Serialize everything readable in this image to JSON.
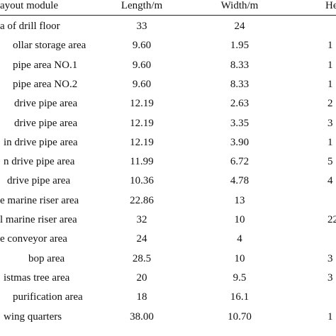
{
  "table": {
    "header": [
      "ayout module",
      "Length/m",
      "Width/m",
      "Hei"
    ],
    "rows": [
      [
        "a of drill floor",
        "33",
        "24",
        null
      ],
      [
        "ollar storage area",
        "9.60",
        "1.95",
        "1"
      ],
      [
        "pipe area NO.1",
        "9.60",
        "8.33",
        "1"
      ],
      [
        "pipe area NO.2",
        "9.60",
        "8.33",
        "1"
      ],
      [
        "drive pipe area",
        "12.19",
        "2.63",
        "2"
      ],
      [
        "drive pipe area",
        "12.19",
        "3.35",
        "3"
      ],
      [
        "in drive pipe area",
        "12.19",
        "3.90",
        "1"
      ],
      [
        "n drive pipe area",
        "11.99",
        "6.72",
        "5"
      ],
      [
        "drive pipe area",
        "10.36",
        "4.78",
        "4"
      ],
      [
        "e marine riser area",
        "22.86",
        "13",
        null
      ],
      [
        "l marine riser area",
        "32",
        "10",
        "22"
      ],
      [
        "e conveyor area",
        "24",
        "4",
        null
      ],
      [
        "bop area",
        "28.5",
        "10",
        "3"
      ],
      [
        "istmas tree area",
        "20",
        "9.5",
        "3"
      ],
      [
        "purification area",
        "18",
        "16.1",
        null
      ],
      [
        "wing quarters",
        "38.00",
        "10.70",
        "1"
      ]
    ]
  }
}
